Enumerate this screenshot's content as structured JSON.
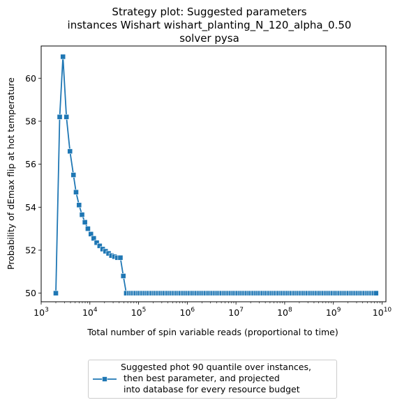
{
  "chart_data": {
    "type": "line",
    "title_lines": [
      "Strategy plot: Suggested parameters",
      "instances Wishart wishart_planting_N_120_alpha_0.50",
      "solver pysa"
    ],
    "xlabel": "Total number of spin variable reads (proportional to time)",
    "ylabel": "Probability of dEmax flip at hot temperature",
    "x_scale": "log",
    "xlim": [
      1000,
      12000000000
    ],
    "ylim": [
      49.6,
      61.5
    ],
    "grid": false,
    "legend_placement": "below",
    "x_ticks": [
      {
        "base": "10",
        "exp": "3",
        "value": 1000
      },
      {
        "base": "10",
        "exp": "4",
        "value": 10000
      },
      {
        "base": "10",
        "exp": "5",
        "value": 100000
      },
      {
        "base": "10",
        "exp": "6",
        "value": 1000000
      },
      {
        "base": "10",
        "exp": "7",
        "value": 10000000
      },
      {
        "base": "10",
        "exp": "8",
        "value": 100000000
      },
      {
        "base": "10",
        "exp": "9",
        "value": 1000000000
      },
      {
        "base": "10",
        "exp": "10",
        "value": 10000000000
      }
    ],
    "y_ticks": [
      50,
      52,
      54,
      56,
      58,
      60
    ],
    "series": [
      {
        "name": "Suggested phot 90 quantile over instances,\n then best parameter, and projected\n into database for every resource budget",
        "color": "#1f77b4",
        "marker": "square",
        "x": [
          2000,
          2400,
          2800,
          3300,
          3900,
          4600,
          5200,
          6000,
          6900,
          7900,
          9100,
          10500,
          12000,
          13800,
          15900,
          18300,
          21000,
          24200,
          27800,
          32000,
          36800,
          42300,
          48600,
          55900
        ],
        "y": [
          50.0,
          58.2,
          61.0,
          58.2,
          56.6,
          55.5,
          54.7,
          54.1,
          53.65,
          53.3,
          53.0,
          52.75,
          52.55,
          52.35,
          52.2,
          52.05,
          51.95,
          51.85,
          51.75,
          51.7,
          51.65,
          51.65,
          50.8,
          50.0
        ],
        "flat_tail": {
          "y": 50.0,
          "x_start": 64000,
          "x_end": 7500000000
        }
      }
    ]
  }
}
